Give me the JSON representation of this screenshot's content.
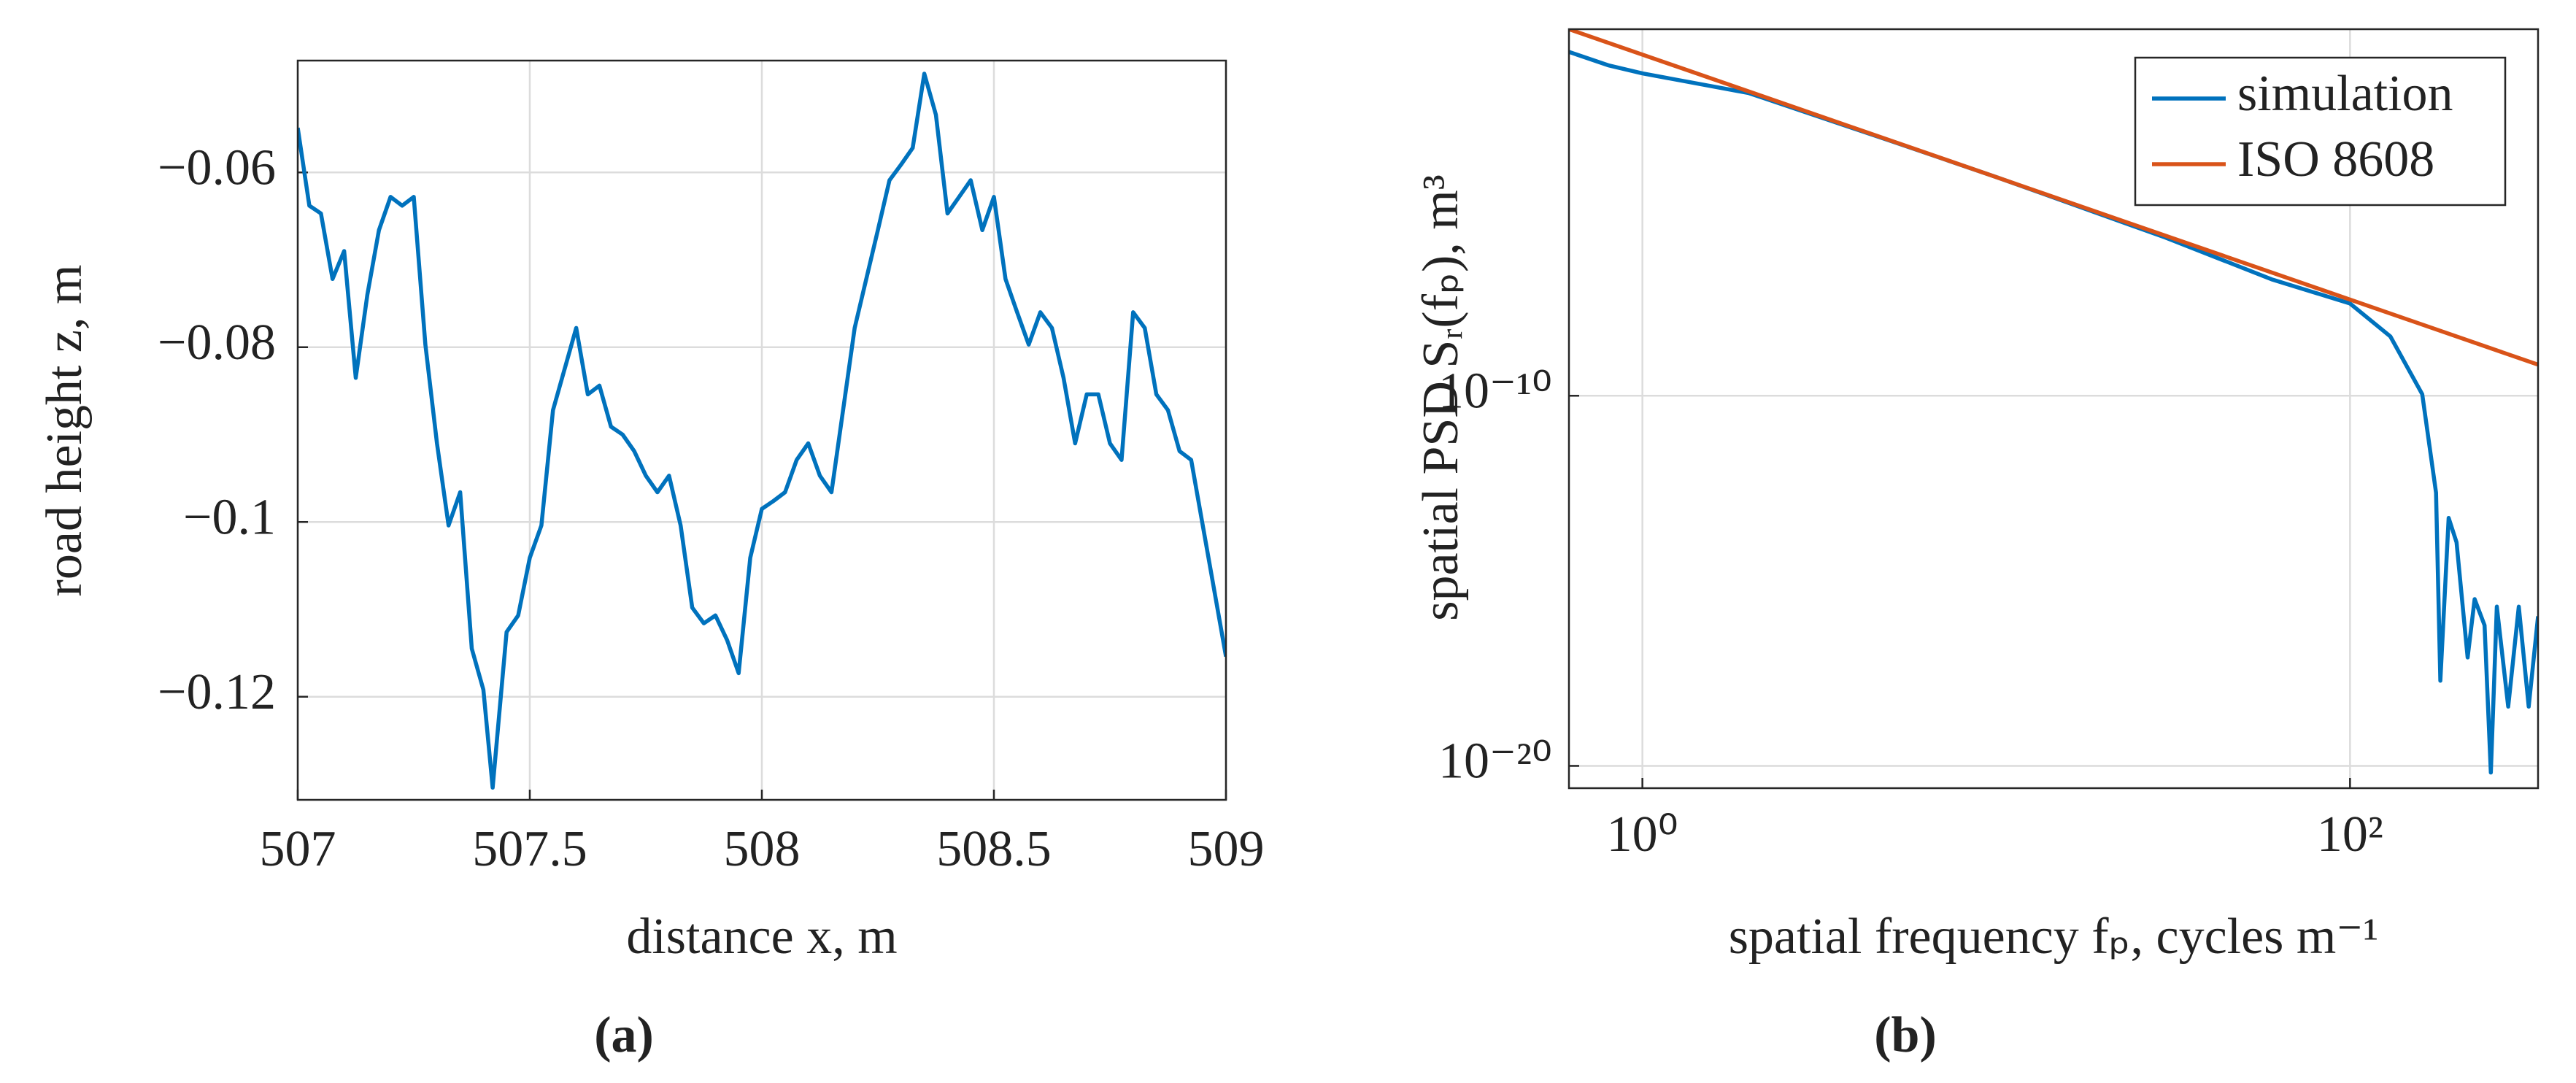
{
  "chart_data": [
    {
      "type": "line",
      "caption": "(a)",
      "xlabel": "distance x, m",
      "ylabel": "road height z, m",
      "xlim": [
        507,
        509
      ],
      "ylim": [
        -0.1318,
        -0.0472
      ],
      "xticks": [
        507,
        507.5,
        508,
        508.5,
        509
      ],
      "yticks": [
        {
          "value": -0.12,
          "label": "−0.12"
        },
        {
          "value": -0.1,
          "label": "−0.1"
        },
        {
          "value": -0.08,
          "label": "−0.08"
        },
        {
          "value": -0.06,
          "label": "−0.06"
        }
      ],
      "grid": true,
      "x": [
        507,
        507.025,
        507.05,
        507.075,
        507.1,
        507.125,
        507.15,
        507.175,
        507.2,
        507.225,
        507.25,
        507.275,
        507.3,
        507.325,
        507.35,
        507.375,
        507.4,
        507.42,
        507.45,
        507.475,
        507.5,
        507.525,
        507.55,
        507.575,
        507.6,
        507.625,
        507.65,
        507.675,
        507.7,
        507.725,
        507.75,
        507.775,
        507.8,
        507.825,
        507.85,
        507.875,
        507.9,
        507.925,
        507.95,
        507.975,
        508,
        508.025,
        508.05,
        508.075,
        508.1,
        508.125,
        508.15,
        508.175,
        508.2,
        508.225,
        508.25,
        508.275,
        508.3,
        508.325,
        508.35,
        508.375,
        508.4,
        508.425,
        508.45,
        508.475,
        508.5,
        508.525,
        508.55,
        508.575,
        508.6,
        508.625,
        508.65,
        508.675,
        508.7,
        508.725,
        508.75,
        508.775,
        508.8,
        508.825,
        508.85,
        508.875,
        508.9,
        508.925,
        508.95,
        508.975,
        509
      ],
      "series": [
        {
          "color": "#0072bd",
          "values": [
            -0.0549,
            -0.0638,
            -0.0647,
            -0.0722,
            -0.069,
            -0.0835,
            -0.074,
            -0.0666,
            -0.0628,
            -0.0638,
            -0.0628,
            -0.0797,
            -0.091,
            -0.1004,
            -0.0966,
            -0.1145,
            -0.1192,
            -0.1304,
            -0.1126,
            -0.1107,
            -0.1041,
            -0.1004,
            -0.0872,
            -0.0825,
            -0.0778,
            -0.0854,
            -0.0844,
            -0.0891,
            -0.09,
            -0.0919,
            -0.0947,
            -0.0966,
            -0.0947,
            -0.1004,
            -0.1098,
            -0.1116,
            -0.1107,
            -0.1135,
            -0.1173,
            -0.1041,
            -0.0985,
            -0.0976,
            -0.0966,
            -0.0929,
            -0.091,
            -0.0947,
            -0.0966,
            -0.0872,
            -0.0778,
            -0.0722,
            -0.0666,
            -0.0609,
            -0.0591,
            -0.0572,
            -0.0487,
            -0.0534,
            -0.0647,
            -0.0628,
            -0.0609,
            -0.0666,
            -0.0628,
            -0.0722,
            -0.076,
            -0.0797,
            -0.076,
            -0.0778,
            -0.0835,
            -0.091,
            -0.0854,
            -0.0854,
            -0.091,
            -0.0929,
            -0.076,
            -0.0778,
            -0.0854,
            -0.0872,
            -0.0919,
            -0.0929,
            -0.1004,
            -0.1079,
            -0.1154
          ]
        }
      ]
    },
    {
      "type": "line",
      "caption": "(b)",
      "xlabel": "spatial frequency fₚ, cycles m⁻¹",
      "ylabel": "spatial PSD Sᵣ(fₚ), m³",
      "xscale": "log",
      "yscale": "log",
      "xlim": [
        0.62,
        340
      ],
      "ylim": [
        2.5e-21,
        0.8
      ],
      "xticks": [
        {
          "value": 1,
          "label": "10⁰"
        },
        {
          "value": 100,
          "label": "10²"
        }
      ],
      "yticks": [
        {
          "value": 1e-20,
          "label": "10⁻²⁰"
        },
        {
          "value": 1e-10,
          "label": "10⁻¹⁰"
        }
      ],
      "grid": true,
      "legend": "upper right",
      "series": [
        {
          "name": "simulation",
          "color": "#0072bd",
          "x": [
            0.62,
            0.8,
            1,
            2,
            5,
            10,
            30,
            60,
            100,
            130,
            160,
            175,
            180,
            190,
            200,
            215,
            225,
            240,
            250,
            260,
            280,
            300,
            320,
            340
          ],
          "values": [
            0.195,
            0.085,
            0.051,
            0.015,
            0.00078,
            8.1e-05,
            1.9e-06,
            1.4e-07,
            3.1e-08,
            4e-09,
            1.1e-10,
            2.4e-13,
            2e-18,
            5e-14,
            1.1e-14,
            8.5e-18,
            3.2e-16,
            6.3e-17,
            6.6e-21,
            2e-16,
            4e-19,
            2e-16,
            4e-19,
            1.1e-16
          ]
        },
        {
          "name": "ISO 8608",
          "color": "#d95319",
          "x": [
            0.62,
            340
          ],
          "values": [
            0.8,
            6.9e-10
          ]
        }
      ]
    }
  ]
}
